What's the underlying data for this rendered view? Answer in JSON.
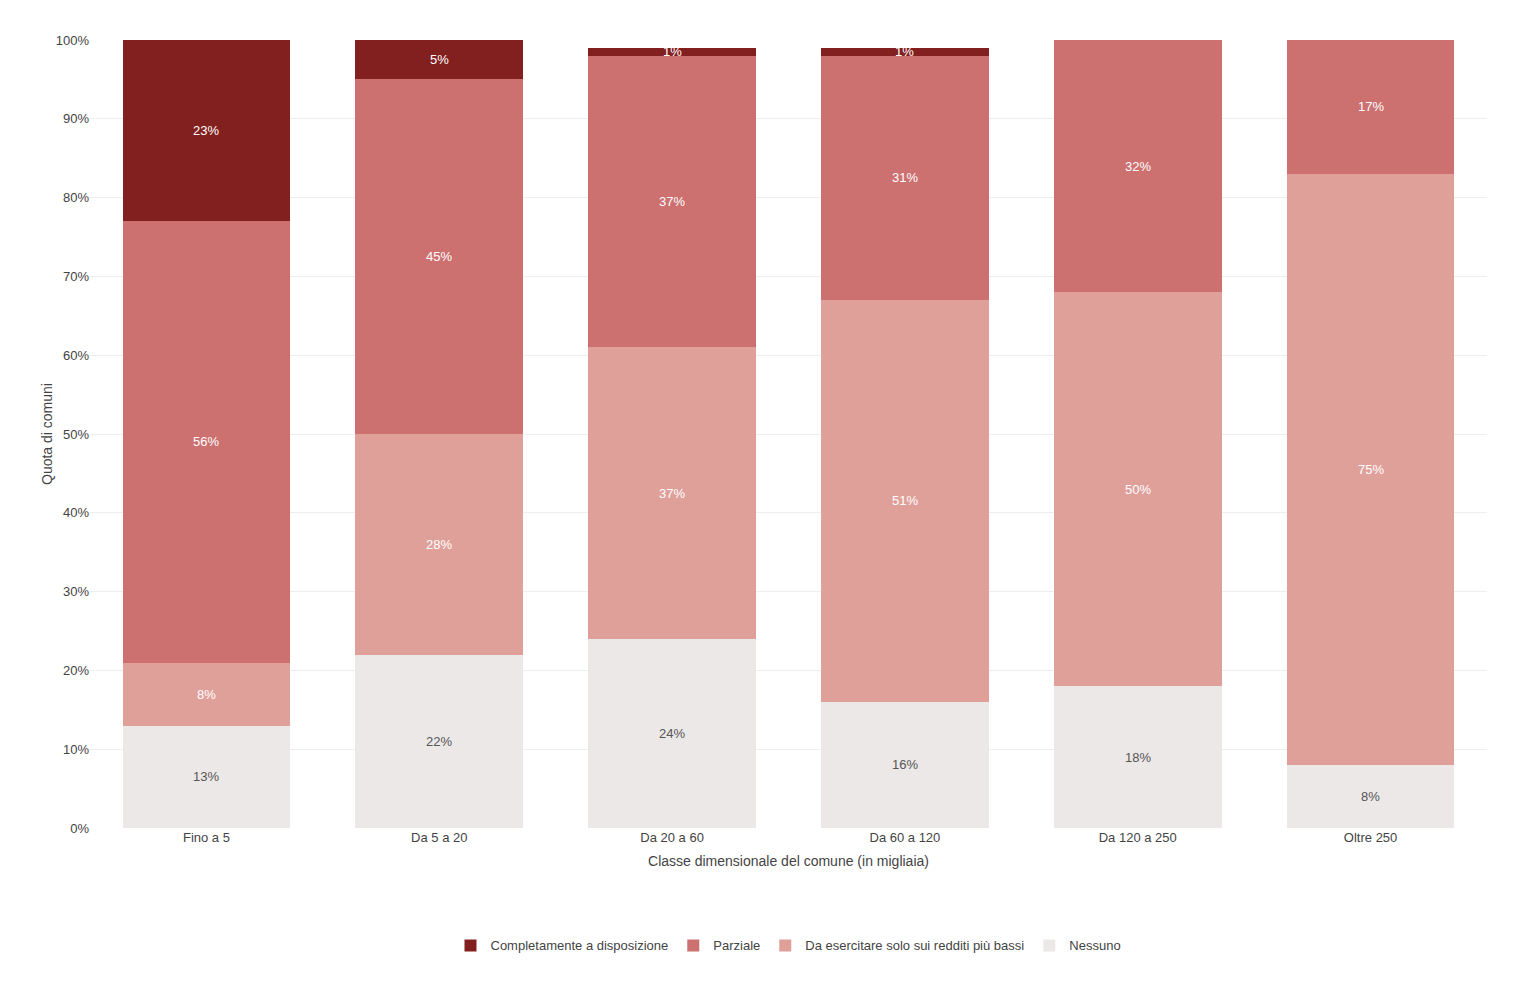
{
  "chart_data": {
    "type": "bar",
    "stacked": true,
    "data_labels": true,
    "grid": true,
    "legend": "bottom",
    "xlabel": "Classe dimensionale del comune (in migliaia)",
    "ylabel": "Quota di comuni",
    "categories": [
      "Fino a 5",
      "Da 5 a 20",
      "Da 20 a 60",
      "Da 60 a 120",
      "Da 120 a 250",
      "Oltre 250"
    ],
    "series": [
      {
        "name": "Nessuno",
        "color": "#ede8e8",
        "values": [
          13,
          22,
          24,
          16,
          18,
          8
        ],
        "value_labels": [
          "13%",
          "22%",
          "24%",
          "16%",
          "18%",
          "8%"
        ]
      },
      {
        "name": "Da esercitare solo sui redditi più bassi",
        "color": "#e0a09a",
        "values": [
          8,
          28,
          37,
          51,
          50,
          75
        ],
        "value_labels": [
          "8%",
          "28%",
          "37%",
          "51%",
          "50%",
          "75%"
        ]
      },
      {
        "name": "Parziale",
        "color": "#cc7070",
        "values": [
          56,
          45,
          37,
          31,
          32,
          17
        ],
        "value_labels": [
          "56%",
          "45%",
          "37%",
          "31%",
          "32%",
          "17%"
        ]
      },
      {
        "name": "Completamente a disposizione",
        "color": "#822020",
        "values": [
          23,
          5,
          1,
          1,
          0,
          0
        ],
        "value_labels": [
          "23%",
          "5%",
          "1%",
          "1%",
          null,
          null
        ]
      }
    ],
    "ylim": [
      0,
      100
    ],
    "yticks": [
      {
        "value": 0,
        "label": "0%"
      },
      {
        "value": 10,
        "label": "10%"
      },
      {
        "value": 20,
        "label": "20%"
      },
      {
        "value": 30,
        "label": "30%"
      },
      {
        "value": 40,
        "label": "40%"
      },
      {
        "value": 50,
        "label": "50%"
      },
      {
        "value": 60,
        "label": "60%"
      },
      {
        "value": 70,
        "label": "70%"
      },
      {
        "value": 80,
        "label": "80%"
      },
      {
        "value": 90,
        "label": "90%"
      },
      {
        "value": 100,
        "label": "100%"
      }
    ]
  }
}
